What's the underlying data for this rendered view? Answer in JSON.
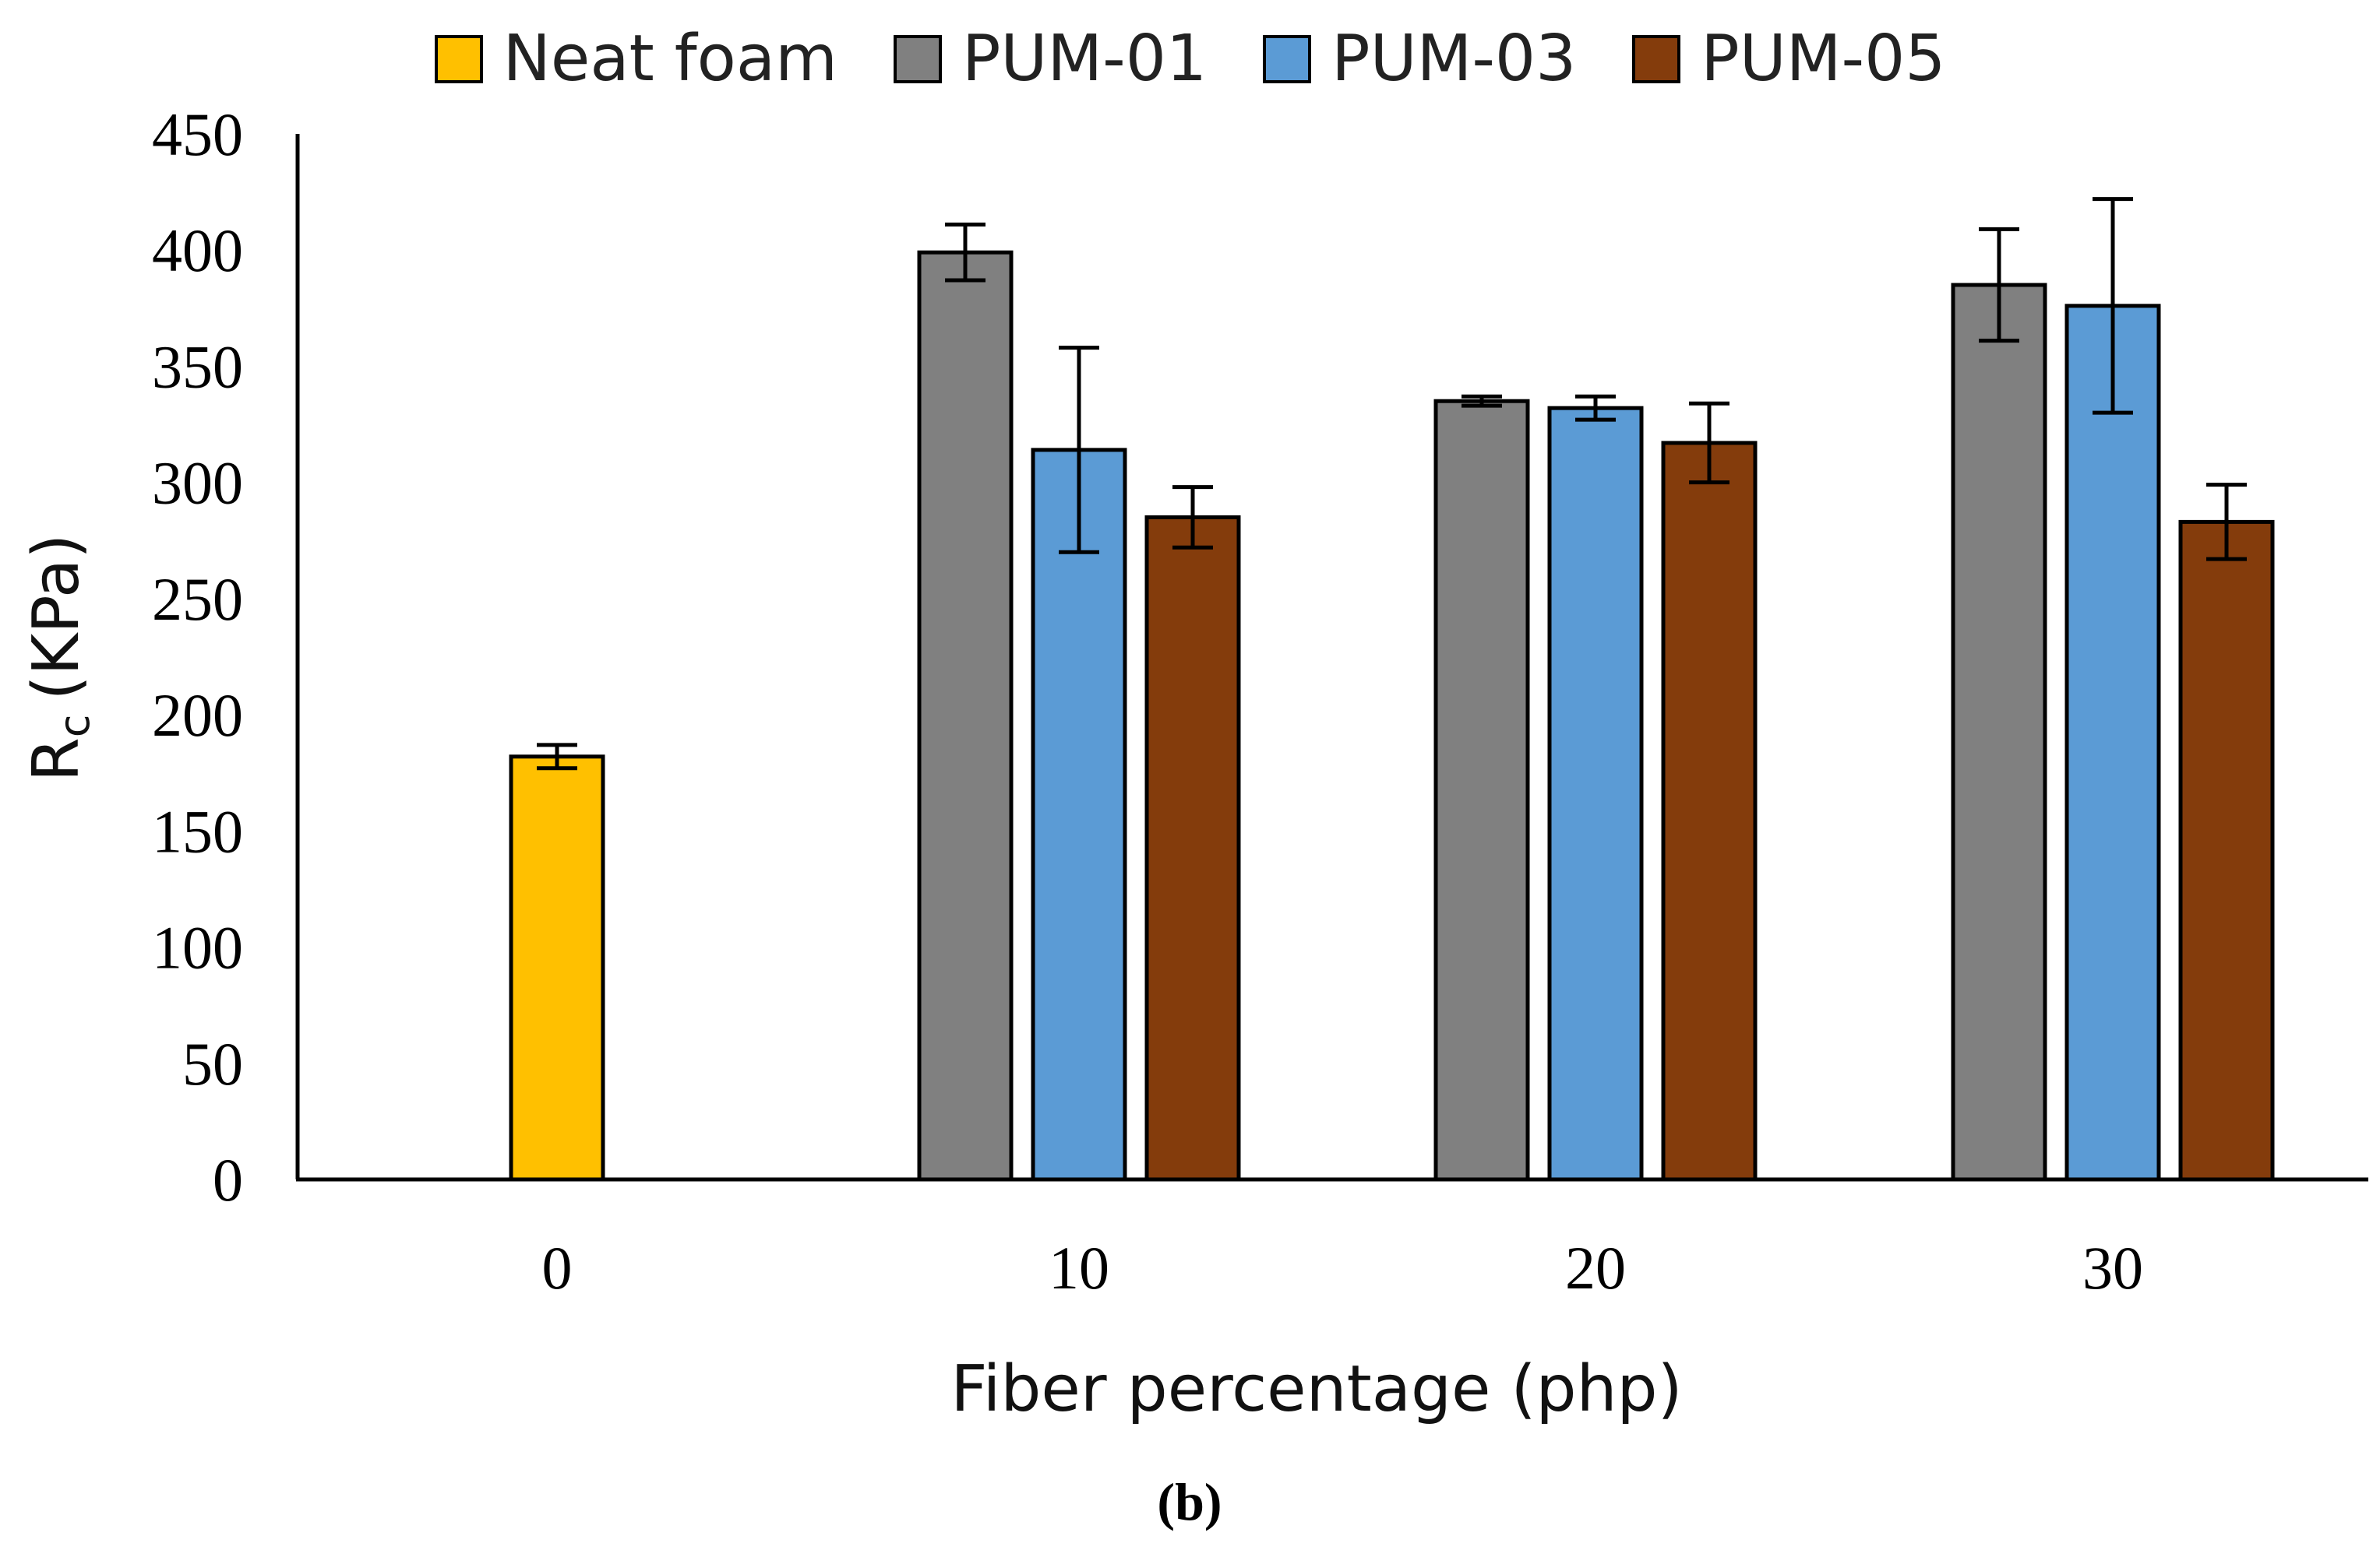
{
  "chart_data": {
    "type": "bar",
    "categories": [
      "0",
      "10",
      "20",
      "30"
    ],
    "series": [
      {
        "name": "Neat foam",
        "color": "#FFC000",
        "values": [
          182,
          null,
          null,
          null
        ],
        "errors": [
          5,
          null,
          null,
          null
        ]
      },
      {
        "name": "PUM-01",
        "color": "#808080",
        "values": [
          null,
          399,
          335,
          385
        ],
        "errors": [
          null,
          12,
          2,
          24
        ]
      },
      {
        "name": "PUM-03",
        "color": "#5B9BD5",
        "values": [
          null,
          314,
          332,
          376
        ],
        "errors": [
          null,
          44,
          5,
          46
        ]
      },
      {
        "name": "PUM-05",
        "color": "#843C0C",
        "values": [
          null,
          285,
          317,
          283
        ],
        "errors": [
          null,
          13,
          17,
          16
        ]
      }
    ],
    "ylim": [
      0,
      450
    ],
    "yticks": [
      0,
      50,
      100,
      150,
      200,
      250,
      300,
      350,
      400,
      450
    ],
    "ylabel_main": "R",
    "ylabel_sub": "c",
    "ylabel_unit": "(KPa)",
    "xlabel": "Fiber percentage (php)",
    "caption_open": "(",
    "caption_letter": "b",
    "caption_close": ")",
    "legend_position": "top-center"
  }
}
